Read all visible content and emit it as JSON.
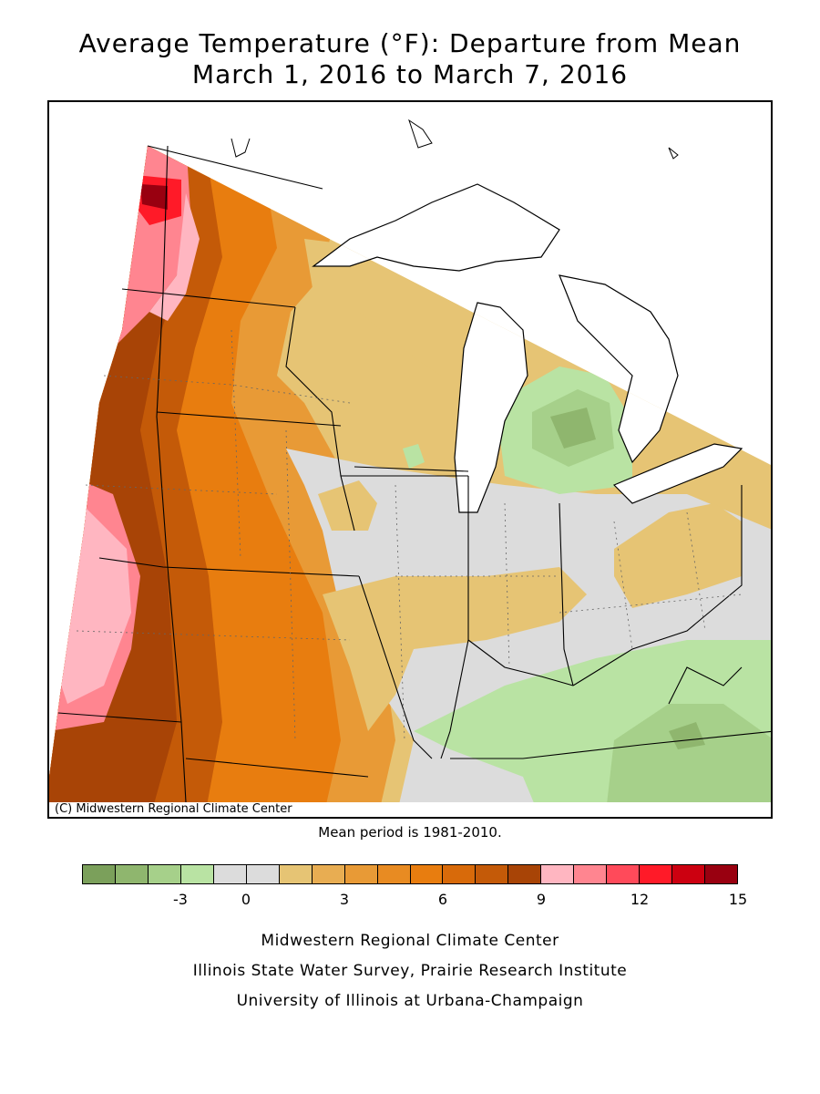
{
  "title_line1": "Average Temperature (°F): Departure from Mean",
  "title_line2": "March 1, 2016 to March 7, 2016",
  "copyright": "(C) Midwestern Regional Climate Center",
  "mean_period": "Mean period is 1981-2010.",
  "legend": {
    "colors": [
      "#7ba05b",
      "#8fb66e",
      "#a6d08a",
      "#b9e3a3",
      "#dcdcdc",
      "#dcdcdc",
      "#e6c474",
      "#e8ad52",
      "#e89a36",
      "#e88b22",
      "#e87d0f",
      "#d86a0a",
      "#c45a08",
      "#a84406",
      "#ffb6c1",
      "#ff8590",
      "#ff4a5a",
      "#ff1a28",
      "#cc0010",
      "#990010"
    ],
    "tick_labels": [
      "-3",
      "0",
      "3",
      "6",
      "9",
      "12",
      "15"
    ]
  },
  "credits": {
    "line1": "Midwestern Regional Climate Center",
    "line2": "Illinois State Water Survey, Prairie Research Institute",
    "line3": "University of Illinois at Urbana-Champaign"
  },
  "map": {
    "fill_colors": {
      "neutral": "#dcdcdc",
      "light_green": "#b9e3a3",
      "mid_green": "#a6d08a",
      "dark_green": "#8fb66e",
      "light_orange": "#e6c474",
      "orange": "#e89a36",
      "dark_orange": "#e87d0f",
      "brown": "#c45a08",
      "dark_brown": "#a84406",
      "light_pink": "#ffb6c1",
      "pink": "#ff8590",
      "red": "#ff1a28",
      "dark_red": "#990010",
      "water": "#ffffff"
    }
  }
}
